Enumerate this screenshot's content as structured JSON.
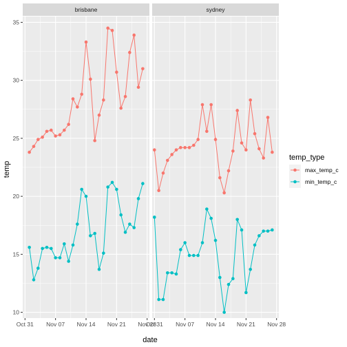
{
  "chart_data": {
    "type": "line",
    "facets": [
      "brisbane",
      "sydney"
    ],
    "xlabel": "date",
    "ylabel": "temp",
    "x_ticks": [
      "Oct 31",
      "Nov 07",
      "Nov 14",
      "Nov 21",
      "Nov 28"
    ],
    "y_ticks": [
      10,
      15,
      20,
      25,
      30,
      35
    ],
    "xlim": [
      "2019-10-31",
      "2019-11-28"
    ],
    "ylim": [
      9.5,
      35.5
    ],
    "legend": {
      "title": "temp_type",
      "position": "right"
    },
    "series": [
      {
        "name": "max_temp_c",
        "color": "#F8766D",
        "facet_values": {
          "brisbane": [
            23.8,
            24.3,
            24.9,
            25.1,
            25.6,
            25.7,
            25.2,
            25.3,
            25.7,
            26.2,
            28.4,
            27.7,
            28.8,
            33.3,
            30.1,
            24.8,
            27.0,
            28.3,
            34.5,
            34.3,
            30.7,
            27.6,
            28.6,
            32.4,
            33.9,
            29.4,
            31.0
          ],
          "sydney": [
            24.0,
            20.5,
            22.0,
            23.1,
            23.6,
            24.0,
            24.2,
            24.2,
            24.2,
            24.4,
            24.9,
            27.9,
            25.6,
            27.9,
            24.9,
            21.6,
            20.3,
            22.2,
            23.9,
            27.4,
            24.6,
            24.0,
            28.3,
            25.4,
            24.1,
            23.3,
            26.8,
            23.8
          ]
        }
      },
      {
        "name": "min_temp_c",
        "color": "#00BFC4",
        "facet_values": {
          "brisbane": [
            15.6,
            12.8,
            13.8,
            15.5,
            15.6,
            15.5,
            14.7,
            14.7,
            15.9,
            14.4,
            15.8,
            17.6,
            20.6,
            20.0,
            16.6,
            16.8,
            13.7,
            15.1,
            20.8,
            21.2,
            20.6,
            18.4,
            16.9,
            17.6,
            17.3,
            19.8,
            21.1
          ],
          "sydney": [
            18.2,
            11.1,
            11.1,
            13.4,
            13.4,
            13.3,
            15.4,
            16.0,
            14.9,
            14.9,
            14.9,
            16.0,
            18.9,
            18.1,
            16.2,
            13.0,
            10.0,
            12.4,
            12.9,
            18.0,
            17.1,
            11.7,
            13.7,
            15.8,
            16.6,
            17.0,
            17.0,
            17.1
          ]
        }
      }
    ],
    "facet_start_dates": {
      "brisbane": "2019-11-01",
      "sydney": "2019-10-31"
    }
  }
}
